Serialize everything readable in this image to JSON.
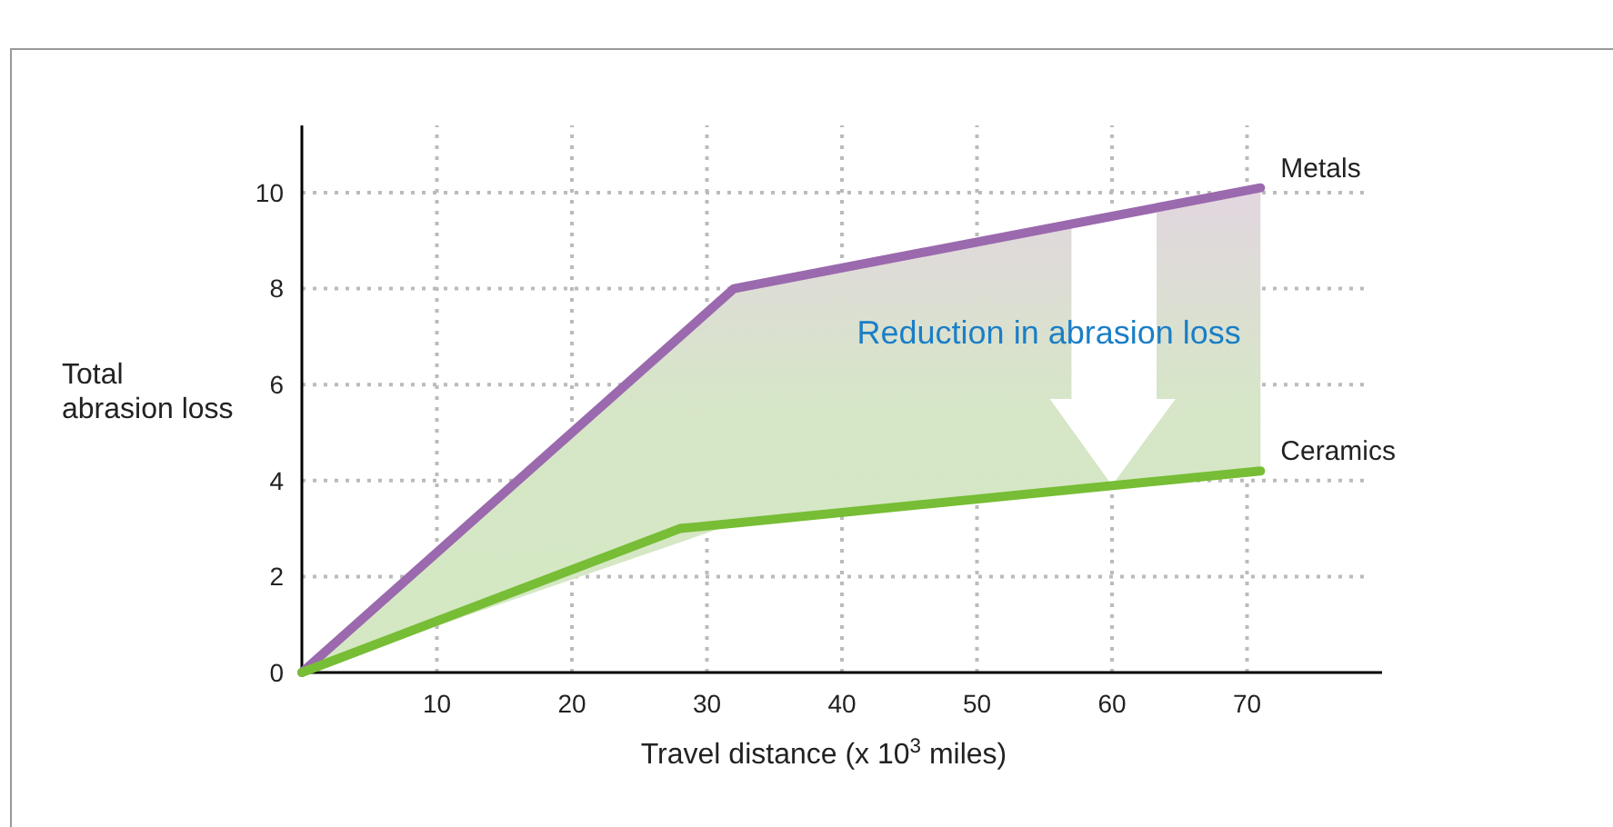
{
  "chart_data": {
    "type": "line",
    "xlabel": "Travel distance (x 10$^{3}$ miles)",
    "ylabel": "Total abrasion loss",
    "xlim": [
      0,
      80
    ],
    "ylim": [
      0,
      11.4
    ],
    "xticks": [
      10,
      20,
      30,
      40,
      50,
      60,
      70
    ],
    "yticks": [
      0,
      2,
      4,
      6,
      8,
      10
    ],
    "grid": true,
    "line_style": "solid",
    "marker": "none",
    "annotations": [
      "Reduction in abrasion loss"
    ],
    "series": [
      {
        "name": "Metals",
        "color": "#9b69ad",
        "x": [
          0,
          32,
          71
        ],
        "values": [
          0,
          8,
          10.1
        ],
        "lower": [
          0,
          3.1,
          4.2
        ],
        "upper": [
          0,
          8,
          10.1
        ]
      },
      {
        "name": "Ceramics",
        "color": "#77bd35",
        "x": [
          0,
          28,
          71
        ],
        "values": [
          0,
          3,
          4.2
        ]
      }
    ]
  }
}
